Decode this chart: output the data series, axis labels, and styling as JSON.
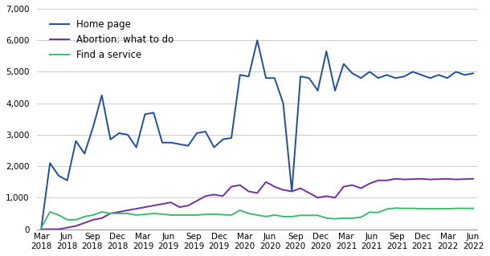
{
  "series": [
    {
      "label": "Home page",
      "color": "#1f4e9e",
      "values": [
        50,
        2100,
        1700,
        1550,
        2800,
        2400,
        3250,
        4250,
        2850,
        3050,
        3000,
        2600,
        3650,
        3700,
        2750,
        2750,
        2700,
        2650,
        3050,
        3100,
        2600,
        2850,
        2900,
        4900,
        4850,
        6000,
        4800,
        4800,
        4000,
        1200,
        4850,
        4800,
        4400,
        5650,
        4400,
        5250,
        4950,
        4800,
        5000,
        4800,
        4900,
        4800,
        4850,
        5000,
        4900,
        4800,
        4900,
        4800,
        5000,
        4900,
        4950
      ]
    },
    {
      "label": "Abortion: what to do",
      "color": "#7030a0",
      "values": [
        0,
        0,
        0,
        50,
        100,
        200,
        300,
        350,
        500,
        550,
        600,
        650,
        700,
        750,
        800,
        850,
        700,
        750,
        900,
        1050,
        1100,
        1050,
        1350,
        1400,
        1200,
        1150,
        1500,
        1350,
        1250,
        1200,
        1300,
        1150,
        1000,
        1050,
        1000,
        1350,
        1400,
        1300,
        1450,
        1550,
        1550,
        1600,
        1580,
        1590,
        1600,
        1580,
        1590,
        1600,
        1580,
        1590,
        1600
      ]
    },
    {
      "label": "Find a service",
      "color": "#3dba6e",
      "values": [
        50,
        550,
        450,
        300,
        300,
        400,
        450,
        550,
        500,
        500,
        500,
        450,
        470,
        500,
        480,
        450,
        450,
        450,
        450,
        470,
        480,
        460,
        450,
        600,
        500,
        450,
        400,
        450,
        400,
        400,
        440,
        440,
        440,
        350,
        330,
        350,
        350,
        380,
        540,
        530,
        640,
        670,
        660,
        660,
        650,
        650,
        650,
        650,
        660,
        660,
        660
      ]
    }
  ],
  "tick_months": [
    "Mar",
    "Jun",
    "Sep",
    "Dec",
    "Mar",
    "Jun",
    "Sep",
    "Dec",
    "Mar",
    "Jun",
    "Sep",
    "Dec",
    "Mar",
    "Jun",
    "Sep",
    "Dec",
    "Mar",
    "Jun"
  ],
  "tick_years": [
    "2018",
    "2018",
    "2018",
    "2018",
    "2019",
    "2019",
    "2019",
    "2019",
    "2020",
    "2020",
    "2020",
    "2020",
    "2021",
    "2021",
    "2021",
    "2021",
    "2022",
    "2022"
  ],
  "ylim": [
    0,
    7000
  ],
  "yticks": [
    0,
    1000,
    2000,
    3000,
    4000,
    5000,
    6000,
    7000
  ],
  "background_color": "#ffffff",
  "grid_color": "#cccccc",
  "legend_fontsize": 8.5,
  "axis_fontsize": 7.5,
  "line_width": 1.4
}
